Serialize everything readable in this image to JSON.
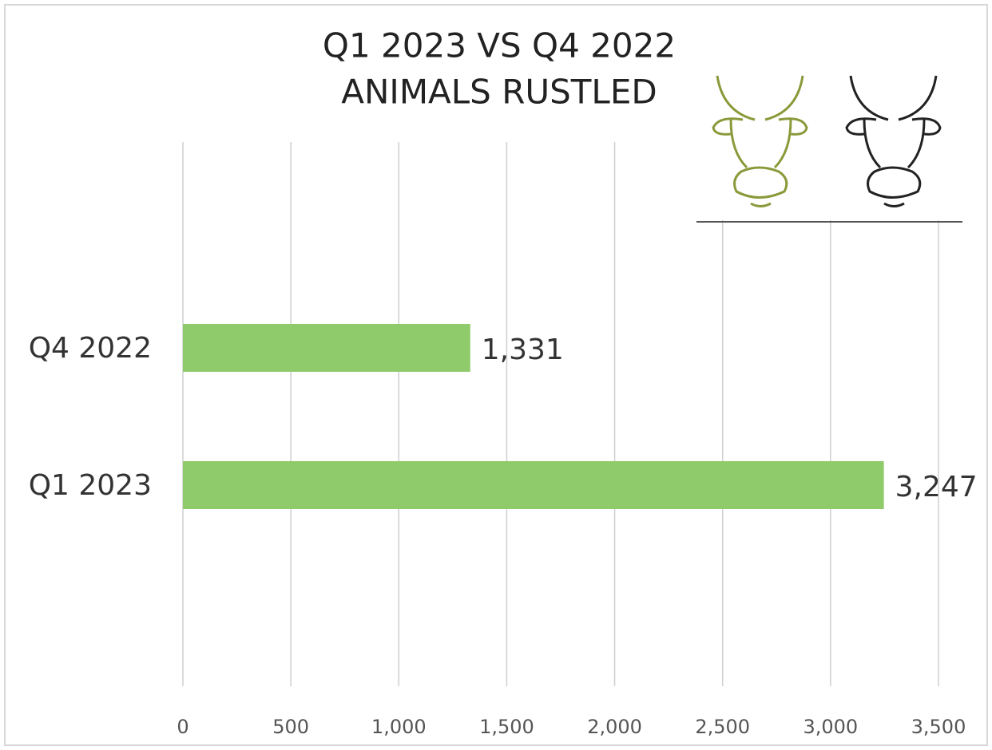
{
  "chart_data": {
    "type": "bar",
    "orientation": "horizontal",
    "title": [
      "Q1 2023 VS Q4 2022",
      "ANIMALS RUSTLED"
    ],
    "categories": [
      "Q4 2022",
      "Q1 2023"
    ],
    "values": [
      1331,
      3247
    ],
    "value_labels": [
      "1,331",
      "3,247"
    ],
    "color": "#8fca6b",
    "xlim": [
      0,
      3500
    ],
    "xticks": [
      0,
      500,
      {
        "value": 1000,
        "label": "1,000"
      },
      {
        "value": 1500,
        "label": "1,500"
      },
      {
        "value": 2000,
        "label": "2,000"
      },
      {
        "value": 2500,
        "label": "2,500"
      },
      {
        "value": 3000,
        "label": "3,000"
      },
      {
        "value": 3500,
        "label": "3,500"
      }
    ],
    "grid": true
  }
}
